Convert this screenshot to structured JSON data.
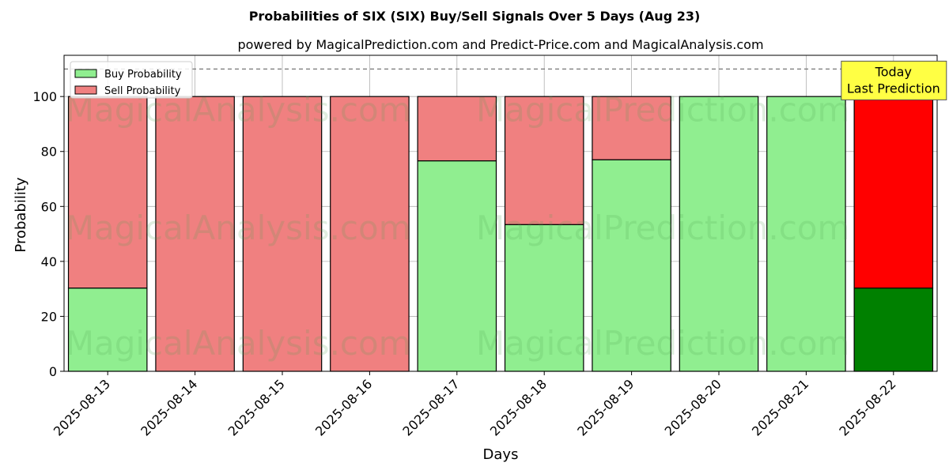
{
  "chart_data": {
    "type": "bar",
    "stacked": true,
    "title": "Probabilities of SIX (SIX) Buy/Sell Signals Over 5 Days (Aug 23)",
    "subtitle": "powered by MagicalPrediction.com and Predict-Price.com and MagicalAnalysis.com",
    "xlabel": "Days",
    "ylabel": "Probability",
    "ylim": [
      0,
      115
    ],
    "yticks": [
      0,
      20,
      40,
      60,
      80,
      100
    ],
    "reference_line": 110,
    "categories": [
      "2025-08-13",
      "2025-08-14",
      "2025-08-15",
      "2025-08-16",
      "2025-08-17",
      "2025-08-18",
      "2025-08-19",
      "2025-08-20",
      "2025-08-21",
      "2025-08-22"
    ],
    "series": [
      {
        "name": "Buy Probability",
        "color": "#90ee90",
        "values": [
          30.3,
          0,
          0,
          0,
          76.6,
          53.4,
          77.0,
          100,
          100,
          30.3
        ]
      },
      {
        "name": "Sell Probability",
        "color": "#f08080",
        "values": [
          69.7,
          100,
          100,
          100,
          23.4,
          46.6,
          23.0,
          0,
          0,
          69.7
        ]
      }
    ],
    "highlight": {
      "index": 9,
      "buy_color": "#008000",
      "sell_color": "#ff0000"
    },
    "annotation": {
      "lines": [
        "Today",
        "Last Prediction"
      ],
      "color": "#ffff44"
    },
    "legend_position": "top-left",
    "grid": true,
    "watermarks": [
      "MagicalAnalysis.com",
      "MagicalPrediction.com"
    ]
  }
}
